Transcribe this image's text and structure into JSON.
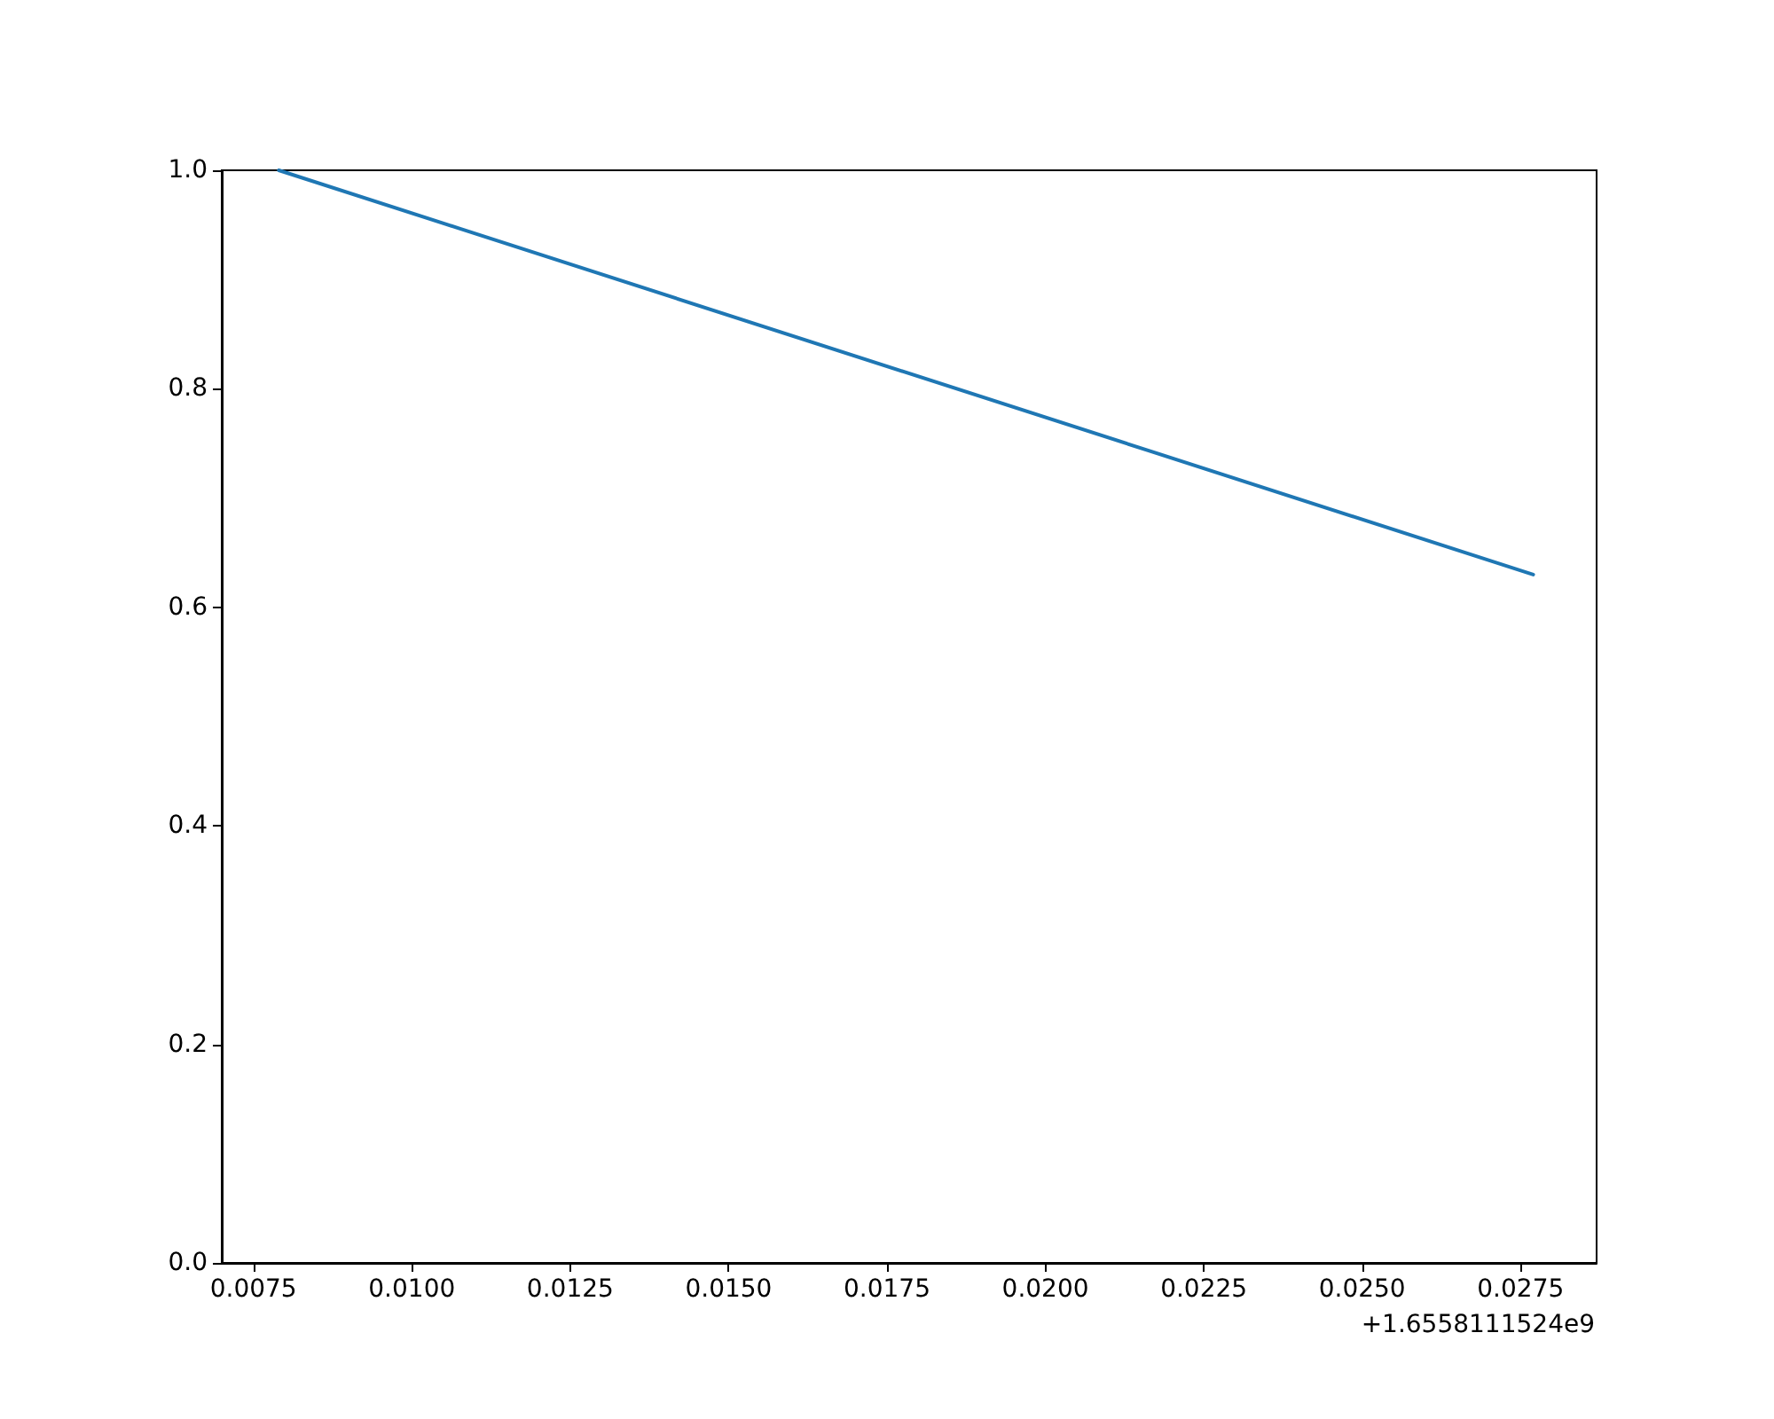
{
  "chart_data": {
    "type": "line",
    "x": [
      0.0079,
      0.0277
    ],
    "values": [
      1.0,
      0.63
    ],
    "color": "#1f77b4",
    "xlim": [
      0.007,
      0.0287
    ],
    "xticks": [
      0.0075,
      {
        "value": 0.01,
        "label": "0.0100"
      },
      0.0125,
      {
        "value": 0.015,
        "label": "0.0150"
      },
      0.0175,
      {
        "value": 0.02,
        "label": "0.0200"
      },
      0.0225,
      {
        "value": 0.025,
        "label": "0.0250"
      },
      0.0275
    ],
    "ylim": [
      0,
      1
    ],
    "yticks": [
      {
        "value": 0,
        "label": "0.0"
      },
      0.2,
      0.4,
      0.6,
      0.8,
      {
        "value": 1,
        "label": "1.0"
      }
    ],
    "grid": false,
    "marker": "none",
    "line_style": "solid",
    "annotations": [
      "+1.6558111524e9"
    ]
  }
}
